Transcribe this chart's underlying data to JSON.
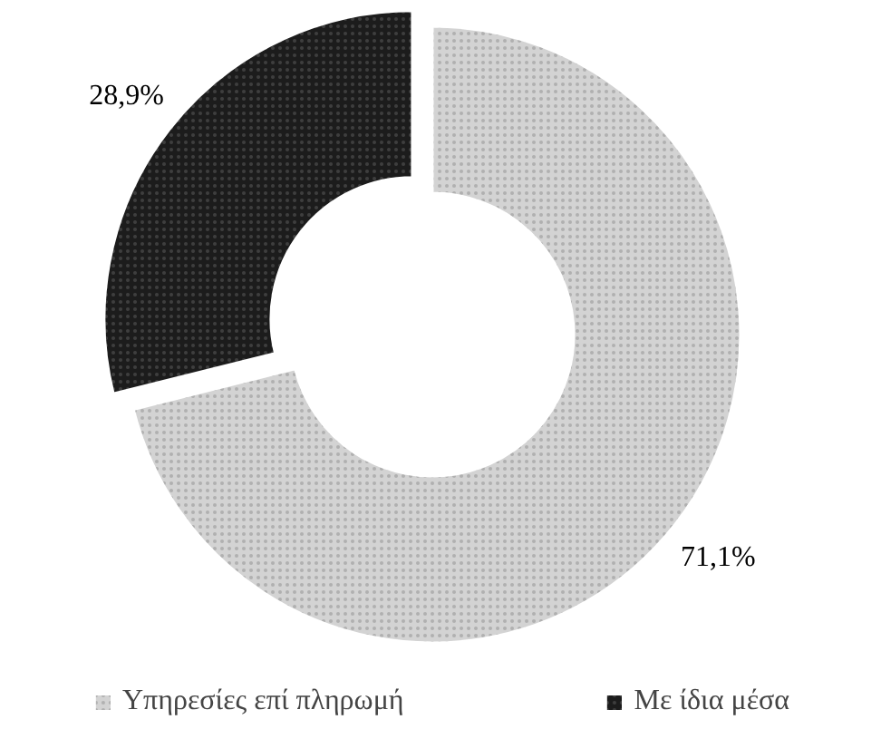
{
  "chart_data": {
    "type": "donut",
    "categories": [
      "Υπηρεσίες επί πληρωμή",
      "Με ίδια μέσα"
    ],
    "values": [
      71.1,
      28.9
    ],
    "colors": [
      "#d3d3d3",
      "#1c1c1c"
    ],
    "value_labels": [
      "71,1%",
      "28,9%"
    ],
    "legend": "bottom"
  }
}
